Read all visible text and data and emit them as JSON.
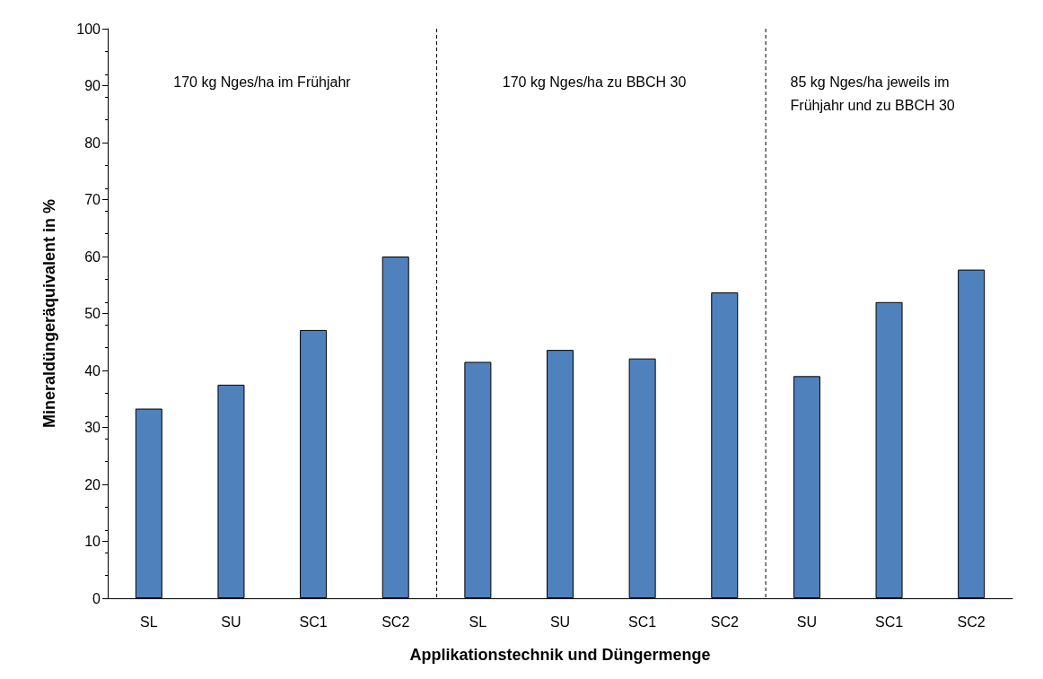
{
  "chart_data": {
    "type": "bar",
    "xlabel": "Applikationstechnik und Düngermenge",
    "ylabel": "Mineraldüngeräquivalent in %",
    "categories": [
      "SL",
      "SU",
      "SC1",
      "SC2",
      "SL",
      "SU",
      "SC1",
      "SC2",
      "SU",
      "SC1",
      "SC2"
    ],
    "values": [
      33.3,
      37.5,
      47.1,
      60,
      41.5,
      43.6,
      42.1,
      53.7,
      39,
      52,
      57.7
    ],
    "color": "#4f81bd",
    "ylim": [
      0,
      100
    ],
    "yticks": [
      0,
      10,
      20,
      30,
      40,
      50,
      60,
      70,
      80,
      90,
      100
    ],
    "annotations": [
      "170 kg Nges/ha im Frühjahr",
      "170 kg Nges/ha zu BBCH 30",
      "85 kg Nges/ha jeweils im Frühjahr und zu BBCH 30"
    ]
  }
}
